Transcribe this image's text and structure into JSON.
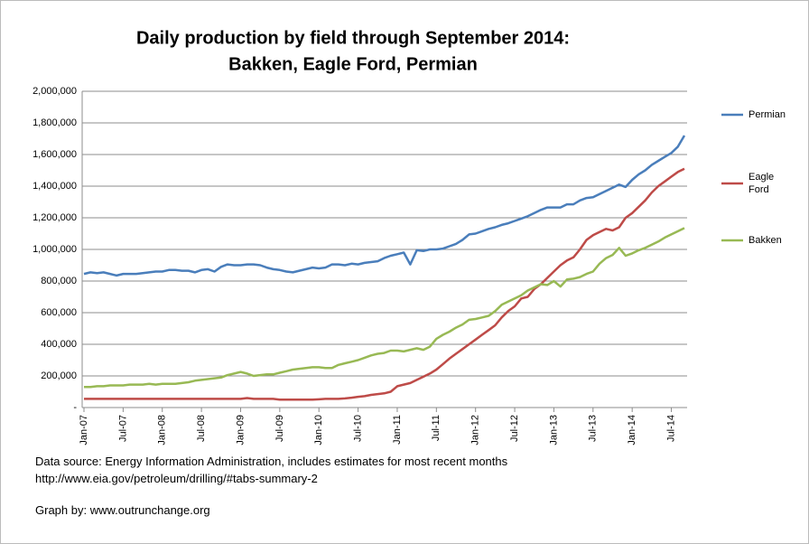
{
  "chart_data": {
    "type": "line",
    "title": [
      "Daily production by field through September 2014:",
      "Bakken, Eagle Ford, Permian"
    ],
    "notes": [
      "Data source: Energy Information Administration, includes estimates for most recent months",
      "http://www.eia.gov/petroleum/drilling/#tabs-summary-2",
      "Graph by: www.outrunchange.org"
    ],
    "categories": [
      "Jan-07",
      null,
      null,
      null,
      null,
      null,
      "Jul-07",
      null,
      null,
      null,
      null,
      null,
      "Jan-08",
      null,
      null,
      null,
      null,
      null,
      "Jul-08",
      null,
      null,
      null,
      null,
      null,
      "Jan-09",
      null,
      null,
      null,
      null,
      null,
      "Jul-09",
      null,
      null,
      null,
      null,
      null,
      "Jan-10",
      null,
      null,
      null,
      null,
      null,
      "Jul-10",
      null,
      null,
      null,
      null,
      null,
      "Jan-11",
      null,
      null,
      null,
      null,
      null,
      "Jul-11",
      null,
      null,
      null,
      null,
      null,
      "Jan-12",
      null,
      null,
      null,
      null,
      null,
      "Jul-12",
      null,
      null,
      null,
      null,
      null,
      "Jan-13",
      null,
      null,
      null,
      null,
      null,
      "Jul-13",
      null,
      null,
      null,
      null,
      null,
      "Jan-14",
      null,
      null,
      null,
      null,
      null,
      "Jul-14",
      null,
      null
    ],
    "series": [
      {
        "name": "Permian",
        "color": "#4a7ebb",
        "values": [
          845000,
          855000,
          850000,
          855000,
          845000,
          835000,
          845000,
          845000,
          845000,
          850000,
          855000,
          860000,
          860000,
          870000,
          870000,
          865000,
          865000,
          855000,
          870000,
          875000,
          860000,
          890000,
          905000,
          900000,
          900000,
          905000,
          905000,
          900000,
          885000,
          875000,
          870000,
          860000,
          855000,
          865000,
          875000,
          885000,
          880000,
          885000,
          905000,
          905000,
          900000,
          910000,
          905000,
          915000,
          920000,
          925000,
          945000,
          960000,
          970000,
          980000,
          905000,
          995000,
          990000,
          1000000,
          1000000,
          1005000,
          1020000,
          1035000,
          1060000,
          1095000,
          1100000,
          1115000,
          1130000,
          1140000,
          1155000,
          1165000,
          1180000,
          1195000,
          1210000,
          1230000,
          1250000,
          1265000,
          1265000,
          1265000,
          1285000,
          1285000,
          1310000,
          1325000,
          1330000,
          1350000,
          1370000,
          1390000,
          1410000,
          1395000,
          1440000,
          1475000,
          1500000,
          1535000,
          1560000,
          1585000,
          1610000,
          1650000,
          1720000
        ]
      },
      {
        "name": "Eagle Ford",
        "color": "#be4b48",
        "values": [
          55000,
          55000,
          55000,
          55000,
          55000,
          55000,
          55000,
          55000,
          55000,
          55000,
          55000,
          55000,
          55000,
          55000,
          55000,
          55000,
          55000,
          55000,
          55000,
          55000,
          55000,
          55000,
          55000,
          55000,
          55000,
          60000,
          55000,
          55000,
          55000,
          55000,
          50000,
          50000,
          50000,
          50000,
          50000,
          50000,
          52000,
          55000,
          55000,
          55000,
          58000,
          62000,
          68000,
          72000,
          80000,
          85000,
          90000,
          100000,
          135000,
          145000,
          155000,
          175000,
          195000,
          215000,
          240000,
          275000,
          310000,
          340000,
          370000,
          400000,
          430000,
          460000,
          490000,
          520000,
          570000,
          610000,
          640000,
          690000,
          700000,
          750000,
          780000,
          820000,
          860000,
          900000,
          930000,
          950000,
          1000000,
          1060000,
          1090000,
          1110000,
          1130000,
          1120000,
          1140000,
          1200000,
          1230000,
          1270000,
          1310000,
          1360000,
          1400000,
          1430000,
          1460000,
          1490000,
          1510000
        ]
      },
      {
        "name": "Bakken",
        "color": "#98b954",
        "values": [
          130000,
          130000,
          135000,
          135000,
          140000,
          140000,
          140000,
          145000,
          145000,
          145000,
          150000,
          145000,
          150000,
          150000,
          150000,
          155000,
          160000,
          170000,
          175000,
          180000,
          185000,
          190000,
          205000,
          215000,
          225000,
          215000,
          200000,
          205000,
          210000,
          210000,
          220000,
          230000,
          240000,
          245000,
          250000,
          255000,
          255000,
          250000,
          250000,
          270000,
          280000,
          290000,
          300000,
          315000,
          330000,
          340000,
          345000,
          360000,
          360000,
          355000,
          365000,
          375000,
          365000,
          385000,
          435000,
          460000,
          480000,
          505000,
          525000,
          555000,
          560000,
          570000,
          580000,
          610000,
          650000,
          670000,
          690000,
          710000,
          740000,
          760000,
          780000,
          775000,
          800000,
          765000,
          810000,
          815000,
          825000,
          845000,
          860000,
          910000,
          945000,
          965000,
          1010000,
          960000,
          975000,
          995000,
          1010000,
          1030000,
          1050000,
          1075000,
          1095000,
          1115000,
          1135000
        ]
      }
    ],
    "ylim": [
      0,
      2000000
    ],
    "yticks": [
      {
        "value": 0,
        "label": "-"
      },
      {
        "value": 200000,
        "label": "200,000"
      },
      {
        "value": 400000,
        "label": "400,000"
      },
      {
        "value": 600000,
        "label": "600,000"
      },
      {
        "value": 800000,
        "label": "800,000"
      },
      {
        "value": 1000000,
        "label": "1,000,000"
      },
      {
        "value": 1200000,
        "label": "1,200,000"
      },
      {
        "value": 1400000,
        "label": "1,400,000"
      },
      {
        "value": 1600000,
        "label": "1,600,000"
      },
      {
        "value": 1800000,
        "label": "1,800,000"
      },
      {
        "value": 2000000,
        "label": "2,000,000"
      }
    ],
    "grid": true,
    "legend": "right"
  }
}
